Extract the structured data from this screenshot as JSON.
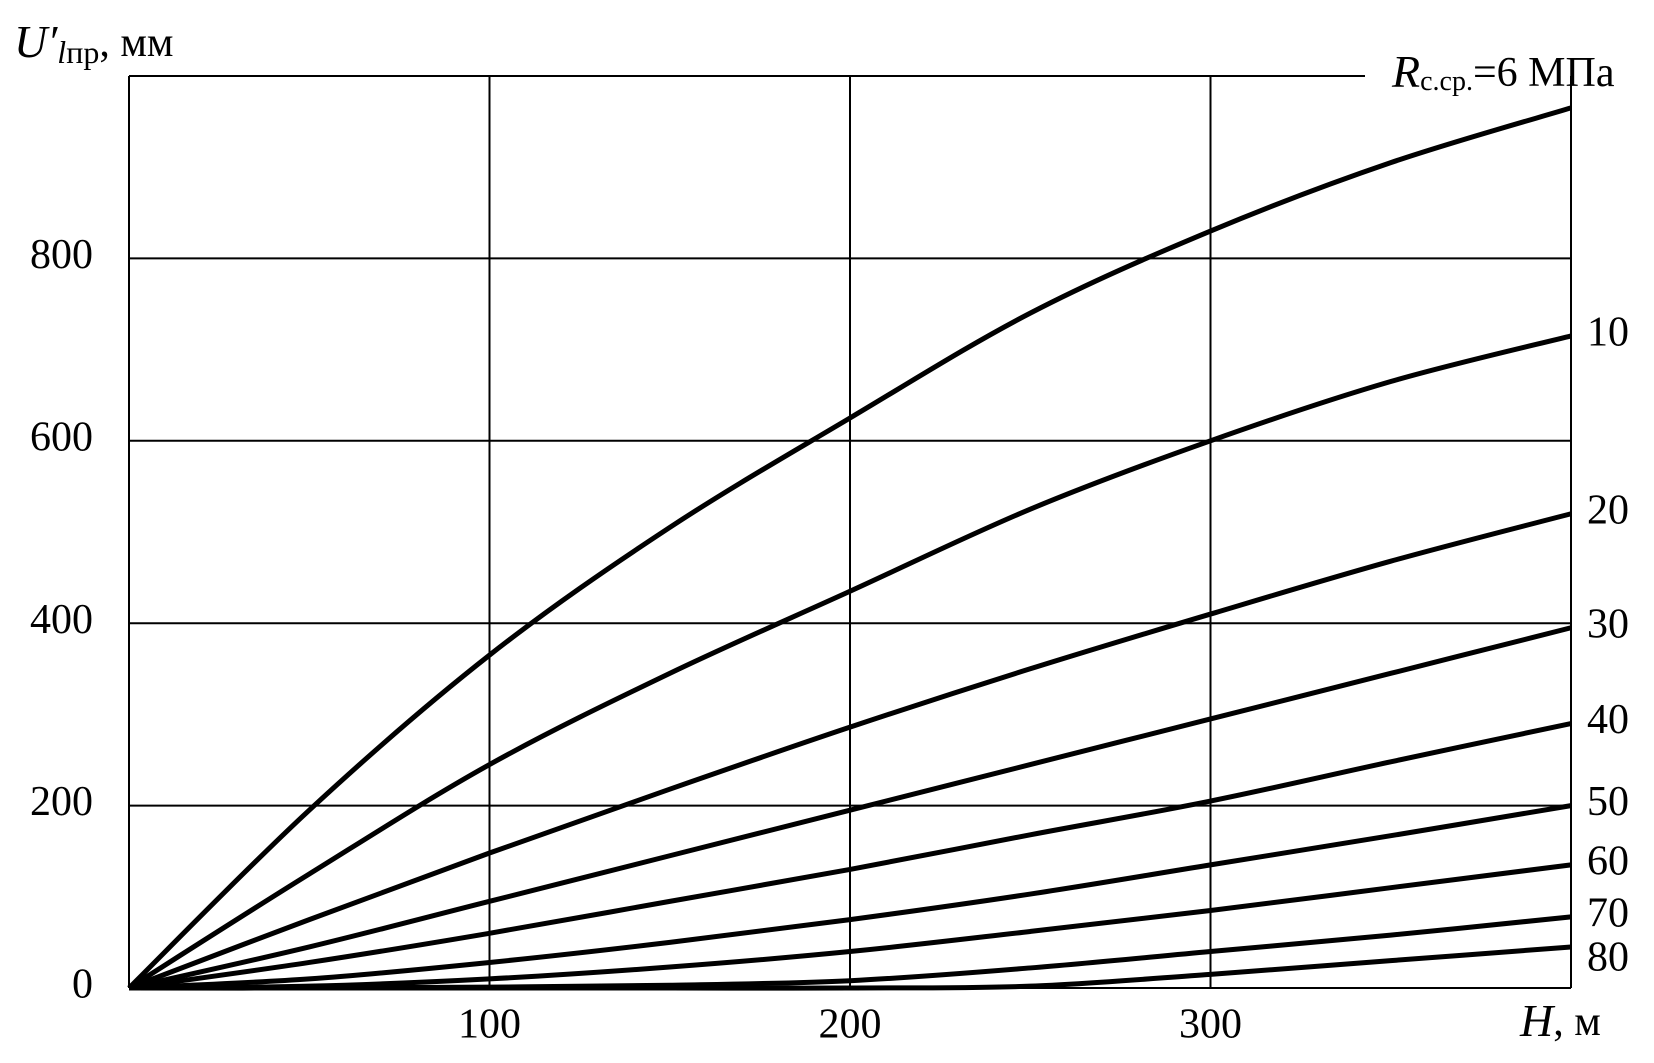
{
  "chart_data": {
    "type": "line",
    "y_label": {
      "symbol": "U′",
      "subscript_italic": "l",
      "subscript": "пр",
      "unit": ", мм"
    },
    "x_label": {
      "symbol": "H",
      "unit": ", м"
    },
    "series_label_prefix": {
      "symbol": "R",
      "subscript": "с.ср."
    },
    "x": [
      0,
      50,
      100,
      150,
      200,
      250,
      300,
      350,
      400
    ],
    "series": [
      {
        "name": "=6 МПа",
        "color": "#000000",
        "values": [
          0,
          195,
          365,
          505,
          625,
          740,
          830,
          905,
          965
        ]
      },
      {
        "name": "10",
        "color": "#000000",
        "values": [
          0,
          125,
          245,
          345,
          435,
          525,
          600,
          665,
          715
        ]
      },
      {
        "name": "20",
        "color": "#000000",
        "values": [
          0,
          75,
          148,
          218,
          286,
          350,
          410,
          468,
          520
        ]
      },
      {
        "name": "30",
        "color": "#000000",
        "values": [
          0,
          45,
          95,
          145,
          195,
          245,
          295,
          345,
          395
        ]
      },
      {
        "name": "40",
        "color": "#000000",
        "values": [
          0,
          28,
          60,
          95,
          130,
          168,
          205,
          248,
          290
        ]
      },
      {
        "name": "50",
        "color": "#000000",
        "values": [
          0,
          10,
          28,
          50,
          75,
          103,
          135,
          167,
          200
        ]
      },
      {
        "name": "60",
        "color": "#000000",
        "values": [
          0,
          2,
          10,
          23,
          40,
          62,
          85,
          110,
          135
        ]
      },
      {
        "name": "70",
        "color": "#000000",
        "values": [
          0,
          0,
          1,
          3,
          8,
          22,
          40,
          58,
          78
        ]
      },
      {
        "name": "80",
        "color": "#000000",
        "values": [
          0,
          0,
          0,
          0,
          0,
          2,
          15,
          30,
          45
        ]
      }
    ],
    "xlim": [
      0,
      400
    ],
    "ylim": [
      0,
      1000
    ],
    "xticks": [
      100,
      200,
      300
    ],
    "yticks": [
      0,
      200,
      400,
      600,
      800
    ],
    "grid": true
  }
}
